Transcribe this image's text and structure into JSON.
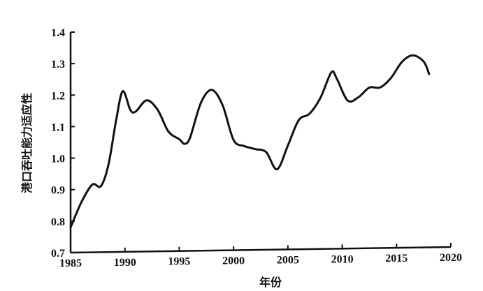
{
  "chart_data": {
    "type": "line",
    "title": "",
    "xlabel": "年份",
    "ylabel": "港口吞吐能力适应性",
    "xlim": [
      1985,
      2020
    ],
    "ylim": [
      0.7,
      1.4
    ],
    "xticks": [
      "1985",
      "1990",
      "1995",
      "2000",
      "2005",
      "2010",
      "2015",
      "2020"
    ],
    "yticks": [
      "0.7",
      "0.8",
      "0.9",
      "1.0",
      "1.1",
      "1.2",
      "1.3",
      "1.4"
    ],
    "grid": false,
    "line_color": "#111111",
    "x": [
      1985,
      1986,
      1987,
      1987.8,
      1988.5,
      1989.2,
      1989.8,
      1990.5,
      1991,
      1992,
      1993,
      1994,
      1995,
      1995.5,
      1996,
      1997,
      1998,
      1999,
      2000,
      2001,
      2002,
      2003,
      2004,
      2005,
      2006,
      2007,
      2008,
      2009,
      2009.5,
      2010.5,
      2011.5,
      2012.5,
      2013.5,
      2014.5,
      2015.5,
      2016.5,
      2017.5,
      2018
    ],
    "y": [
      0.78,
      0.86,
      0.915,
      0.91,
      0.98,
      1.12,
      1.21,
      1.15,
      1.145,
      1.18,
      1.15,
      1.08,
      1.055,
      1.04,
      1.06,
      1.17,
      1.21,
      1.16,
      1.05,
      1.03,
      1.02,
      1.01,
      0.955,
      1.03,
      1.11,
      1.13,
      1.18,
      1.26,
      1.24,
      1.17,
      1.18,
      1.21,
      1.21,
      1.24,
      1.29,
      1.31,
      1.29,
      1.25
    ]
  }
}
